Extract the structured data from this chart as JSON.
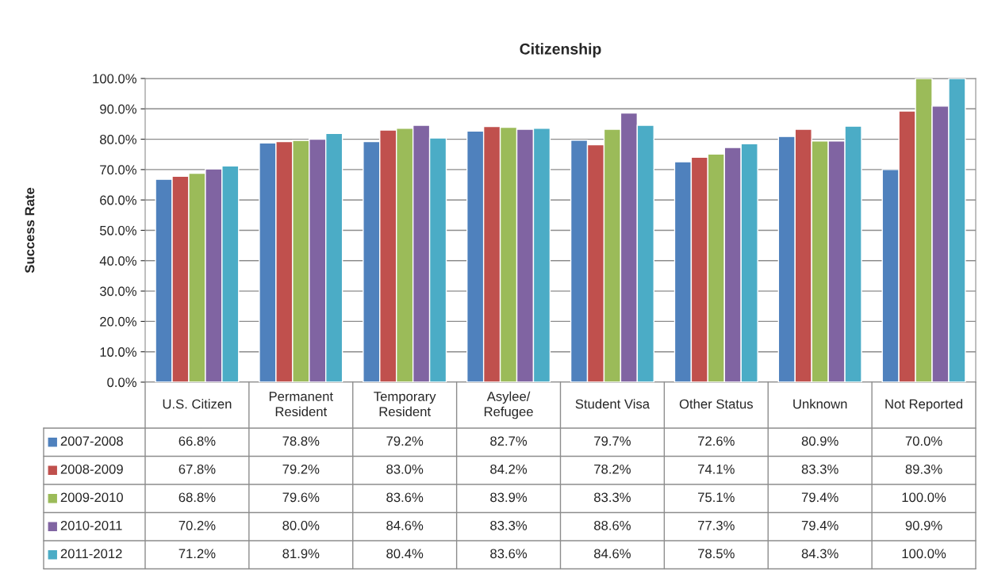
{
  "chart_data": {
    "type": "bar",
    "title": "Citizenship",
    "ylabel": "Success Rate",
    "categories": [
      "U.S. Citizen",
      "Permanent Resident",
      "Temporary Resident",
      "Asylee/ Refugee",
      "Student Visa",
      "Other Status",
      "Unknown",
      "Not Reported"
    ],
    "series": [
      {
        "name": "2007-2008",
        "color": "#4f81bd",
        "values": [
          66.8,
          78.8,
          79.2,
          82.7,
          79.7,
          72.6,
          80.9,
          70.0
        ],
        "value_labels": [
          "66.8%",
          "78.8%",
          "79.2%",
          "82.7%",
          "79.7%",
          "72.6%",
          "80.9%",
          "70.0%"
        ]
      },
      {
        "name": "2008-2009",
        "color": "#c0504d",
        "values": [
          67.8,
          79.2,
          83.0,
          84.2,
          78.2,
          74.1,
          83.3,
          89.3
        ],
        "value_labels": [
          "67.8%",
          "79.2%",
          "83.0%",
          "84.2%",
          "78.2%",
          "74.1%",
          "83.3%",
          "89.3%"
        ]
      },
      {
        "name": "2009-2010",
        "color": "#9bbb59",
        "values": [
          68.8,
          79.6,
          83.6,
          83.9,
          83.3,
          75.1,
          79.4,
          100.0
        ],
        "value_labels": [
          "68.8%",
          "79.6%",
          "83.6%",
          "83.9%",
          "83.3%",
          "75.1%",
          "79.4%",
          "100.0%"
        ]
      },
      {
        "name": "2010-2011",
        "color": "#8064a2",
        "values": [
          70.2,
          80.0,
          84.6,
          83.3,
          88.6,
          77.3,
          79.4,
          90.9
        ],
        "value_labels": [
          "70.2%",
          "80.0%",
          "84.6%",
          "83.3%",
          "88.6%",
          "77.3%",
          "79.4%",
          "90.9%"
        ]
      },
      {
        "name": "2011-2012",
        "color": "#4bacc6",
        "values": [
          71.2,
          81.9,
          80.4,
          83.6,
          84.6,
          78.5,
          84.3,
          100.0
        ],
        "value_labels": [
          "71.2%",
          "81.9%",
          "80.4%",
          "83.6%",
          "84.6%",
          "78.5%",
          "84.3%",
          "100.0%"
        ]
      }
    ],
    "ylim": [
      0,
      100
    ],
    "yticks": [
      {
        "value": 0,
        "label": "0.0%"
      },
      {
        "value": 10,
        "label": "10.0%"
      },
      {
        "value": 20,
        "label": "20.0%"
      },
      {
        "value": 30,
        "label": "30.0%"
      },
      {
        "value": 40,
        "label": "40.0%"
      },
      {
        "value": 50,
        "label": "50.0%"
      },
      {
        "value": 60,
        "label": "60.0%"
      },
      {
        "value": 70,
        "label": "70.0%"
      },
      {
        "value": 80,
        "label": "80.0%"
      },
      {
        "value": 90,
        "label": "90.0%"
      },
      {
        "value": 100,
        "label": "100.0%"
      }
    ],
    "grid": "y",
    "legend": "bottom"
  }
}
